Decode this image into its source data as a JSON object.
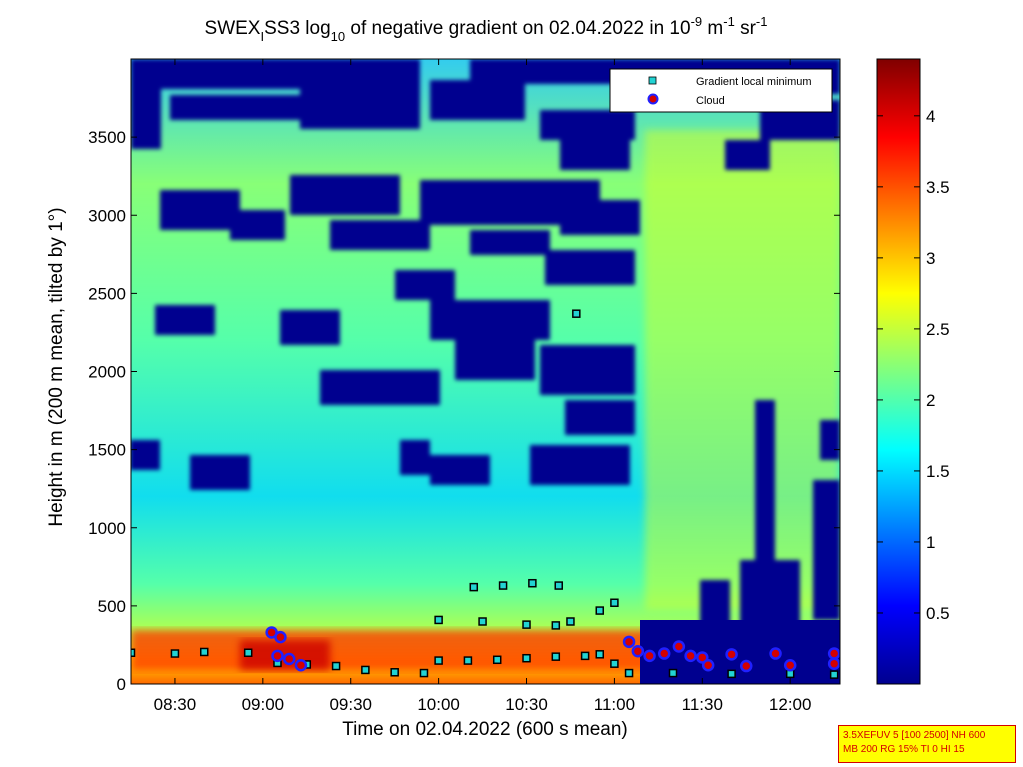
{
  "chart_data": {
    "type": "heatmap",
    "title": {
      "prefix": "SWEX",
      "sub": "I",
      "mid": "SS3 log",
      "sub10": "10",
      "rest": " of negative gradient on 02.04.2022 in 10",
      "exp1": "-9",
      "unit1": " m",
      "exp2": "-1",
      "unit2": " sr",
      "exp3": "-1"
    },
    "xlabel": "Time on 02.04.2022 (600 s mean)",
    "ylabel": "Height in m (200 m mean, tilted by 1°)",
    "x_ticks": [
      "08:30",
      "09:00",
      "09:30",
      "10:00",
      "10:30",
      "11:00",
      "11:30",
      "12:00"
    ],
    "x_tick_minutes": [
      510,
      540,
      570,
      600,
      630,
      660,
      690,
      720
    ],
    "xlim_minutes": [
      495,
      737
    ],
    "y_ticks": [
      "0",
      "500",
      "1000",
      "1500",
      "2000",
      "2500",
      "3000",
      "3500"
    ],
    "y_tick_values": [
      0,
      500,
      1000,
      1500,
      2000,
      2500,
      3000,
      3500
    ],
    "ylim": [
      0,
      4000
    ],
    "colorbar": {
      "ticks": [
        "0.5",
        "1",
        "1.5",
        "2",
        "2.5",
        "3",
        "3.5",
        "4"
      ],
      "tick_values": [
        0.5,
        1,
        1.5,
        2,
        2.5,
        3,
        3.5,
        4
      ],
      "range": [
        0,
        4.4
      ],
      "colormap": "jet"
    },
    "legend": {
      "position": "top-right",
      "entries": [
        {
          "label": "Gradient local minimum",
          "marker": "square",
          "color": "#22d3d3"
        },
        {
          "label": "Cloud",
          "marker": "circle",
          "color": "#d40000",
          "edge": "#2020ff"
        }
      ]
    },
    "series": [
      {
        "name": "Gradient local minimum",
        "points": [
          [
            495,
            200
          ],
          [
            510,
            195
          ],
          [
            520,
            205
          ],
          [
            535,
            200
          ],
          [
            545,
            135
          ],
          [
            555,
            125
          ],
          [
            565,
            115
          ],
          [
            575,
            90
          ],
          [
            585,
            75
          ],
          [
            595,
            70
          ],
          [
            600,
            150
          ],
          [
            610,
            150
          ],
          [
            620,
            155
          ],
          [
            630,
            165
          ],
          [
            640,
            175
          ],
          [
            650,
            180
          ],
          [
            655,
            190
          ],
          [
            660,
            130
          ],
          [
            665,
            70
          ],
          [
            680,
            70
          ],
          [
            700,
            65
          ],
          [
            720,
            65
          ],
          [
            735,
            60
          ],
          [
            600,
            410
          ],
          [
            615,
            400
          ],
          [
            630,
            380
          ],
          [
            640,
            375
          ],
          [
            645,
            400
          ],
          [
            655,
            470
          ],
          [
            660,
            520
          ],
          [
            612,
            620
          ],
          [
            622,
            630
          ],
          [
            632,
            645
          ],
          [
            641,
            630
          ],
          [
            647,
            2370
          ]
        ]
      },
      {
        "name": "Cloud",
        "points": [
          [
            543,
            330
          ],
          [
            546,
            300
          ],
          [
            545,
            180
          ],
          [
            549,
            160
          ],
          [
            553,
            120
          ],
          [
            665,
            270
          ],
          [
            668,
            210
          ],
          [
            672,
            180
          ],
          [
            677,
            195
          ],
          [
            682,
            240
          ],
          [
            686,
            180
          ],
          [
            690,
            170
          ],
          [
            700,
            190
          ],
          [
            715,
            195
          ],
          [
            735,
            195
          ],
          [
            692,
            120
          ],
          [
            705,
            115
          ],
          [
            720,
            120
          ],
          [
            735,
            130
          ]
        ]
      }
    ]
  },
  "info_box": {
    "line1": "3.5XEFUV 5 [100 2500] NH 600",
    "line2": "MB 200 RG 15% TI 0 HI 15"
  }
}
